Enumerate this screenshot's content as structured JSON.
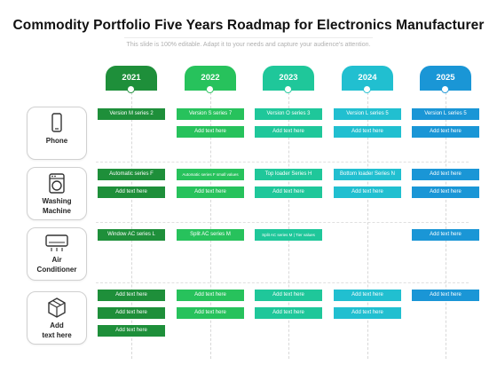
{
  "header": {
    "title": "Commodity Portfolio Five Years Roadmap for Electronics Manufacturer",
    "subtitle": "This slide is 100% editable. Adapt it to your needs and capture your audience's attention."
  },
  "colors": {
    "year_2021": "#1e8f3a",
    "year_2022": "#27c25c",
    "year_2023": "#1fc79a",
    "year_2024": "#21bfd0",
    "year_2025": "#1a96d6"
  },
  "years": [
    {
      "label": "2021"
    },
    {
      "label": "2022"
    },
    {
      "label": "2023"
    },
    {
      "label": "2024"
    },
    {
      "label": "2025"
    }
  ],
  "rows": [
    {
      "label_lines": [
        "Phone"
      ],
      "icon": "phone-icon",
      "cells": [
        [
          "Version M series 2",
          "",
          "",
          ""
        ],
        [
          "Version S series 7",
          "Add text here",
          "",
          ""
        ],
        [
          "Version O series 3",
          "Add text here",
          "",
          ""
        ],
        [
          "Version L series 5",
          "Add text here",
          "",
          ""
        ],
        [
          "Version L series 5",
          "Add text here",
          "",
          ""
        ]
      ]
    },
    {
      "label_lines": [
        "Washing",
        "Machine"
      ],
      "icon": "washing-machine-icon",
      "cells": [
        [
          "Automatic series F",
          "Add text here",
          "",
          ""
        ],
        [
          "Automatic series F small values",
          "Add text here",
          "",
          ""
        ],
        [
          "Top loader Series H",
          "Add text here",
          "",
          ""
        ],
        [
          "Bottom loader Series N",
          "Add text here",
          "",
          ""
        ],
        [
          "Add text here",
          "Add text here",
          "",
          ""
        ]
      ]
    },
    {
      "label_lines": [
        "Air",
        "Conditioner"
      ],
      "icon": "air-conditioner-icon",
      "cells": [
        [
          "Window AC series L",
          "",
          "",
          ""
        ],
        [
          "Split AC series M",
          "",
          "",
          ""
        ],
        [
          "Split AC series M | Tier values",
          "",
          "",
          ""
        ],
        [
          "",
          "",
          "",
          ""
        ],
        [
          "Add text here",
          "",
          "",
          ""
        ]
      ]
    },
    {
      "label_lines": [
        "Add",
        "text here"
      ],
      "icon": "box-icon",
      "cells": [
        [
          "Add text here",
          "Add text here",
          "Add text here"
        ],
        [
          "Add text here",
          "Add text here",
          ""
        ],
        [
          "Add text here",
          "Add text here",
          ""
        ],
        [
          "Add text here",
          "Add text here",
          ""
        ],
        [
          "Add text here",
          "",
          ""
        ]
      ]
    }
  ]
}
